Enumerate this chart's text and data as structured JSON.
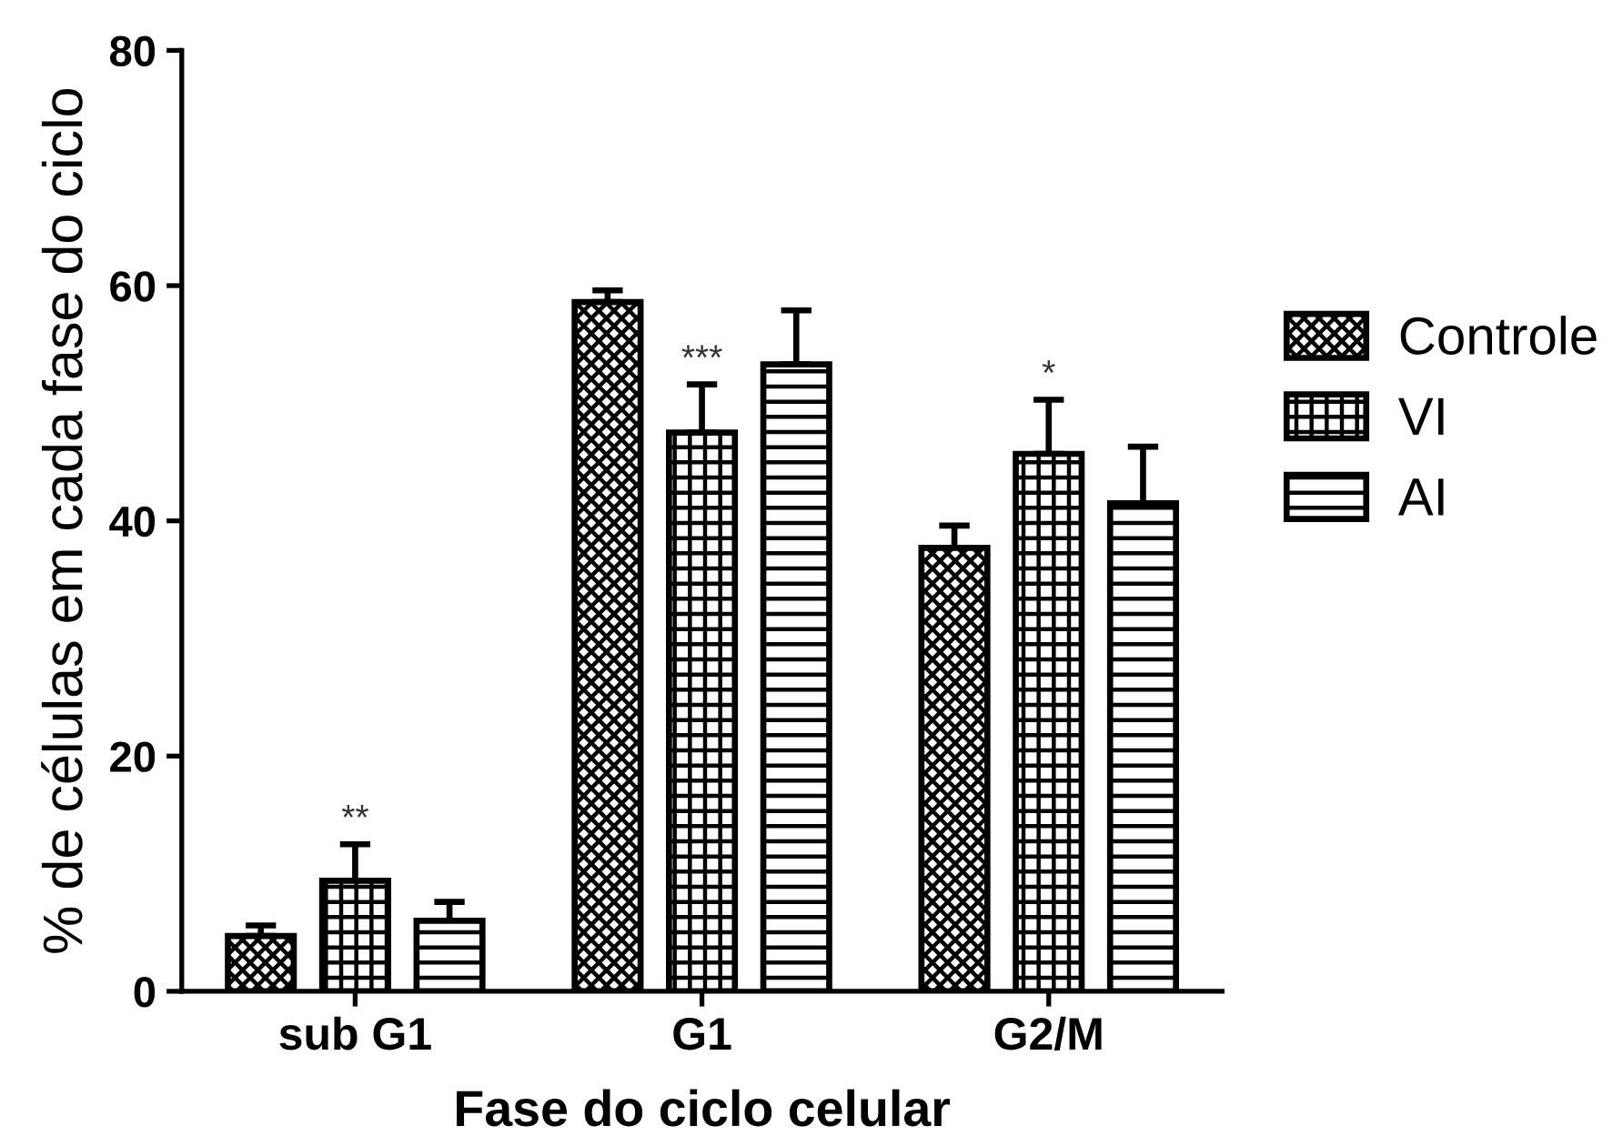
{
  "chart_data": {
    "type": "bar",
    "xlabel": "Fase do ciclo celular",
    "ylabel": "% de células em cada fase do ciclo",
    "categories": [
      "sub G1",
      "G1",
      "G2/M"
    ],
    "series": [
      {
        "name": "Controle",
        "color": "#000000",
        "values": [
          4.7,
          58.6,
          37.7
        ],
        "errors": [
          [
            4.7,
            5.6
          ],
          [
            58.6,
            59.6
          ],
          [
            37.7,
            39.6
          ]
        ]
      },
      {
        "name": "VI",
        "color": "#000000",
        "values": [
          9.4,
          47.5,
          45.7
        ],
        "errors": [
          [
            9.4,
            12.5
          ],
          [
            47.5,
            51.6
          ],
          [
            45.7,
            50.3
          ]
        ]
      },
      {
        "name": "AI",
        "color": "#000000",
        "values": [
          6.0,
          53.3,
          41.5
        ],
        "errors": [
          [
            6.0,
            7.6
          ],
          [
            53.3,
            57.9
          ],
          [
            41.5,
            46.3
          ]
        ]
      }
    ],
    "ylim": [
      0,
      80
    ],
    "yticks": [
      0,
      20,
      40,
      60,
      80
    ],
    "grid": false,
    "legend": "right",
    "annotations": [
      {
        "text": "**",
        "x": "sub G1",
        "y": 12.5
      },
      {
        "text": "***",
        "x": "G1",
        "y": 51.6
      },
      {
        "text": "*",
        "x": "G2/M",
        "y": 50.3
      }
    ]
  }
}
